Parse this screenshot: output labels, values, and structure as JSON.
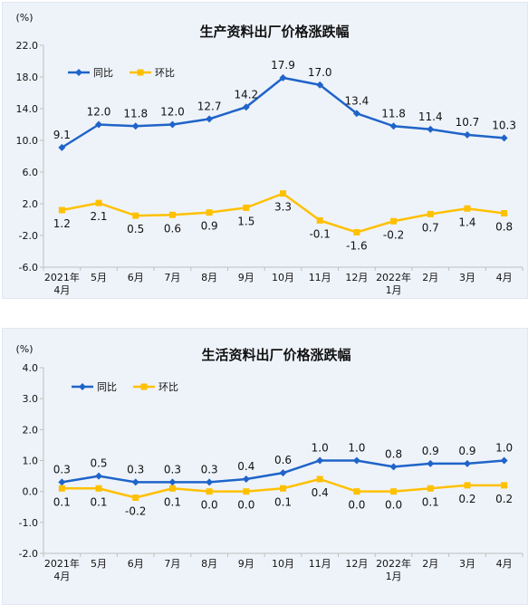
{
  "chart_data": [
    {
      "type": "line",
      "title": "生产资料出厂价格涨跌幅",
      "unit_label": "(%)",
      "ylim": [
        -6.0,
        22.0
      ],
      "yticks": [
        "22.0",
        "18.0",
        "14.0",
        "10.0",
        "6.0",
        "2.0",
        "-2.0",
        "-6.0"
      ],
      "ytick_values": [
        22,
        18,
        14,
        10,
        6,
        2,
        -2,
        -6
      ],
      "categories": [
        "2021年\n4月",
        "5月",
        "6月",
        "7月",
        "8月",
        "9月",
        "10月",
        "11月",
        "12月",
        "2022年\n1月",
        "2月",
        "3月",
        "4月"
      ],
      "legend_position": "top-left",
      "series": [
        {
          "name": "同比",
          "color": "#1f64c8",
          "values": [
            9.1,
            12.0,
            11.8,
            12.0,
            12.7,
            14.2,
            17.9,
            17.0,
            13.4,
            11.8,
            11.4,
            10.7,
            10.3
          ],
          "labels": [
            "9.1",
            "12.0",
            "11.8",
            "12.0",
            "12.7",
            "14.2",
            "17.9",
            "17.0",
            "13.4",
            "11.8",
            "11.4",
            "10.7",
            "10.3"
          ]
        },
        {
          "name": "环比",
          "color": "#ffc000",
          "values": [
            1.2,
            2.1,
            0.5,
            0.6,
            0.9,
            1.5,
            3.3,
            -0.1,
            -1.6,
            -0.2,
            0.7,
            1.4,
            0.8
          ],
          "labels": [
            "1.2",
            "2.1",
            "0.5",
            "0.6",
            "0.9",
            "1.5",
            "3.3",
            "-0.1",
            "-1.6",
            "-0.2",
            "0.7",
            "1.4",
            "0.8"
          ]
        }
      ]
    },
    {
      "type": "line",
      "title": "生活资料出厂价格涨跌幅",
      "unit_label": "(%)",
      "ylim": [
        -2.0,
        4.0
      ],
      "yticks": [
        "4.0",
        "3.0",
        "2.0",
        "1.0",
        "0.0",
        "-1.0",
        "-2.0"
      ],
      "ytick_values": [
        4,
        3,
        2,
        1,
        0,
        -1,
        -2
      ],
      "categories": [
        "2021年\n4月",
        "5月",
        "6月",
        "7月",
        "8月",
        "9月",
        "10月",
        "11月",
        "12月",
        "2022年\n1月",
        "2月",
        "3月",
        "4月"
      ],
      "legend_position": "top-left",
      "series": [
        {
          "name": "同比",
          "color": "#1f64c8",
          "values": [
            0.3,
            0.5,
            0.3,
            0.3,
            0.3,
            0.4,
            0.6,
            1.0,
            1.0,
            0.8,
            0.9,
            0.9,
            1.0
          ],
          "labels": [
            "0.3",
            "0.5",
            "0.3",
            "0.3",
            "0.3",
            "0.4",
            "0.6",
            "1.0",
            "1.0",
            "0.8",
            "0.9",
            "0.9",
            "1.0"
          ]
        },
        {
          "name": "环比",
          "color": "#ffc000",
          "values": [
            0.1,
            0.1,
            -0.2,
            0.1,
            0.0,
            0.0,
            0.1,
            0.4,
            0.0,
            0.0,
            0.1,
            0.2,
            0.2
          ],
          "labels": [
            "0.1",
            "0.1",
            "-0.2",
            "0.1",
            "0.0",
            "0.0",
            "0.1",
            "0.4",
            "0.0",
            "0.0",
            "0.1",
            "0.2",
            "0.2"
          ]
        }
      ]
    }
  ]
}
